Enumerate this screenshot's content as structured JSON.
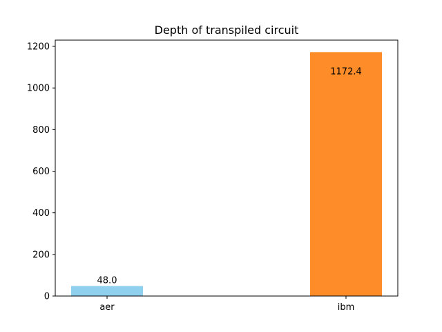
{
  "chart_data": {
    "type": "bar",
    "title": "Depth of transpiled circuit",
    "xlabel": "",
    "ylabel": "",
    "categories": [
      "aer",
      "ibm"
    ],
    "values": [
      48.0,
      1172.4
    ],
    "data_labels": [
      "48.0",
      "1172.4"
    ],
    "colors": [
      "#8fd0ee",
      "#fd8c29"
    ],
    "ylim": [
      0,
      1230
    ],
    "yticks": [
      0,
      200,
      400,
      600,
      800,
      1000,
      1200
    ],
    "grid": false,
    "legend": "none"
  }
}
